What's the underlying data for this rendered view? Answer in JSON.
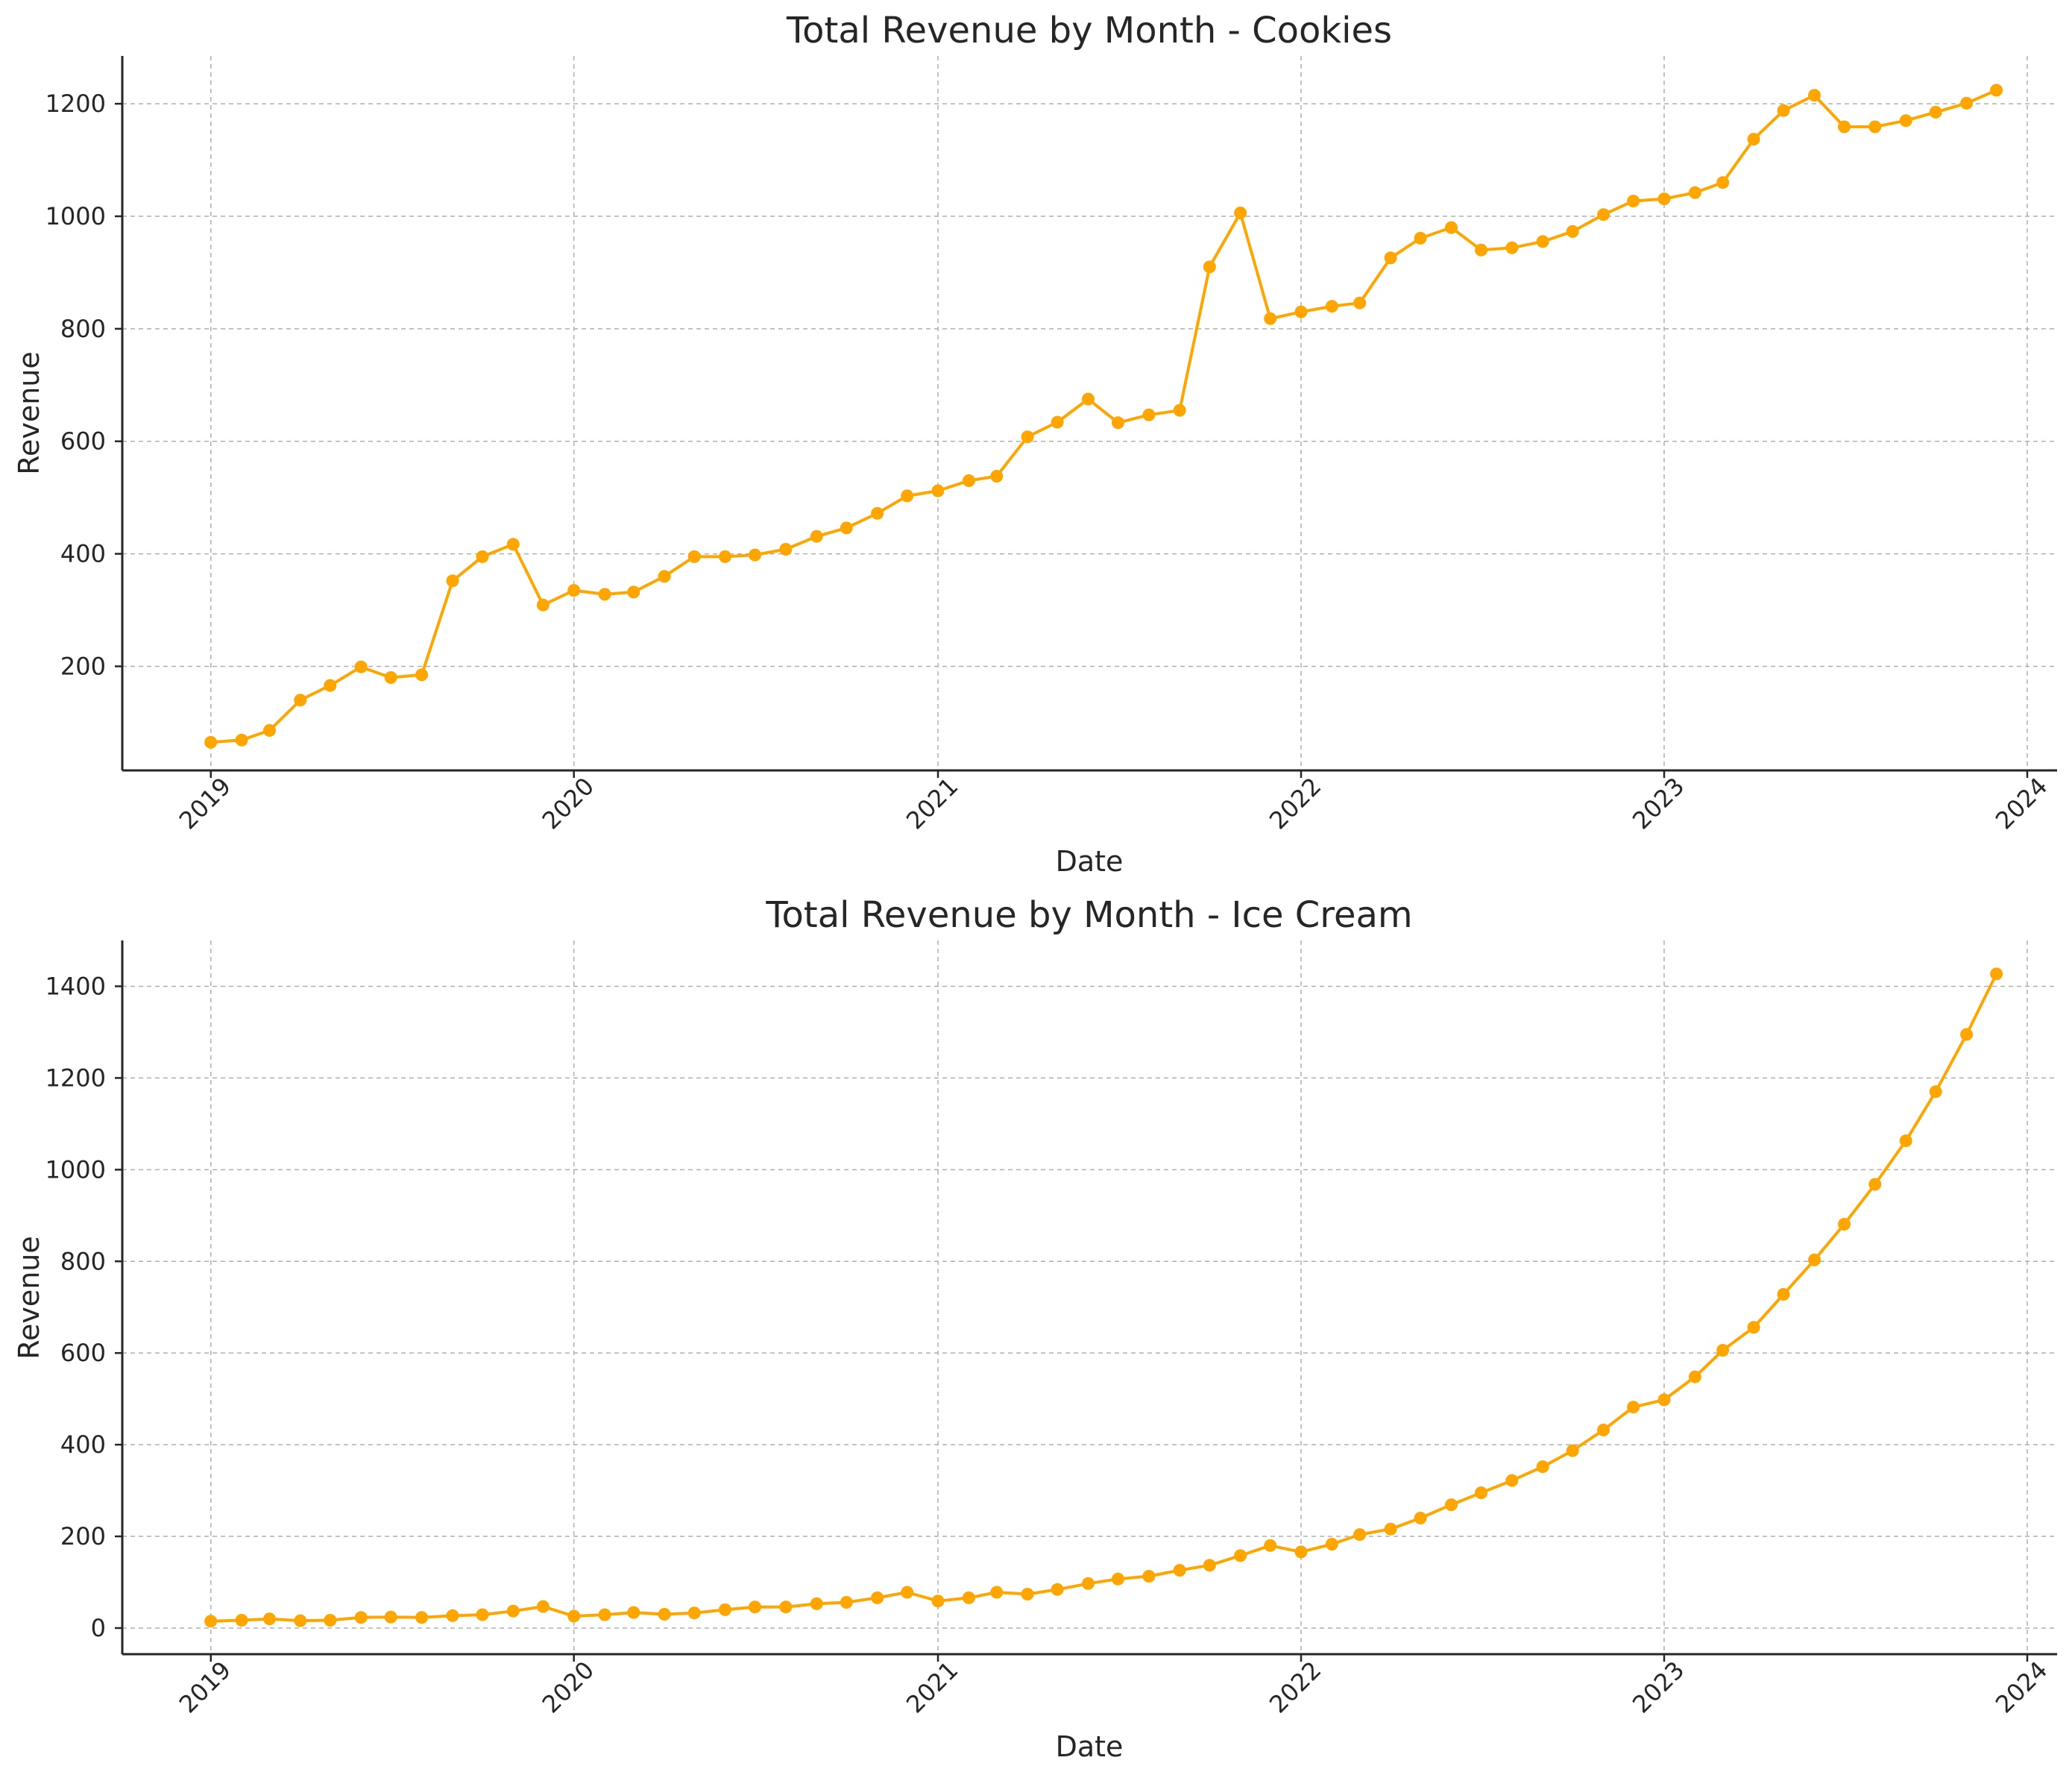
{
  "chart_data": [
    {
      "type": "line",
      "title": "Total Revenue by Month - Cookies",
      "xlabel": "Date",
      "ylabel": "Revenue",
      "x_tick_labels": [
        "2019",
        "2020",
        "2021",
        "2022",
        "2023",
        "2024"
      ],
      "y_tick_labels": [
        "200",
        "400",
        "600",
        "800",
        "1000",
        "1200"
      ],
      "y_ticks": [
        200,
        400,
        600,
        800,
        1000,
        1200
      ],
      "ylim": [
        15,
        1285
      ],
      "xlim": [
        "2018-10-04",
        "2024-01-31"
      ],
      "grid": true,
      "color": "#ffa500",
      "marker": "circle",
      "x_start": "2019-01",
      "x_end": "2023-12",
      "values": [
        65,
        69,
        86,
        140,
        166,
        199,
        180,
        185,
        352,
        395,
        417,
        309,
        335,
        328,
        332,
        360,
        395,
        395,
        398,
        408,
        431,
        446,
        472,
        503,
        512,
        530,
        538,
        608,
        634,
        675,
        633,
        647,
        655,
        910,
        1006,
        818,
        830,
        840,
        846,
        926,
        961,
        980,
        940,
        944,
        955,
        973,
        1003,
        1027,
        1031,
        1042,
        1060,
        1137,
        1188,
        1215,
        1159,
        1159,
        1170,
        1185,
        1201,
        1224
      ]
    },
    {
      "type": "line",
      "title": "Total Revenue by Month - Ice Cream",
      "xlabel": "Date",
      "ylabel": "Revenue",
      "x_tick_labels": [
        "2019",
        "2020",
        "2021",
        "2022",
        "2023",
        "2024"
      ],
      "y_tick_labels": [
        "0",
        "200",
        "400",
        "600",
        "800",
        "1000",
        "1200",
        "1400"
      ],
      "y_ticks": [
        0,
        200,
        400,
        600,
        800,
        1000,
        1200,
        1400
      ],
      "ylim": [
        -57,
        1500
      ],
      "xlim": [
        "2018-10-04",
        "2024-01-31"
      ],
      "grid": true,
      "color": "#ffa500",
      "marker": "circle",
      "x_start": "2019-01",
      "x_end": "2023-12",
      "values": [
        15,
        17,
        20,
        16,
        17,
        23,
        24,
        23,
        27,
        29,
        37,
        47,
        26,
        29,
        34,
        30,
        33,
        40,
        46,
        46,
        53,
        56,
        66,
        78,
        59,
        66,
        78,
        74,
        84,
        97,
        107,
        113,
        126,
        137,
        158,
        180,
        166,
        183,
        204,
        216,
        240,
        269,
        295,
        322,
        352,
        387,
        432,
        482,
        498,
        548,
        606,
        656,
        728,
        803,
        881,
        968,
        1063,
        1170,
        1295,
        1427
      ]
    }
  ]
}
